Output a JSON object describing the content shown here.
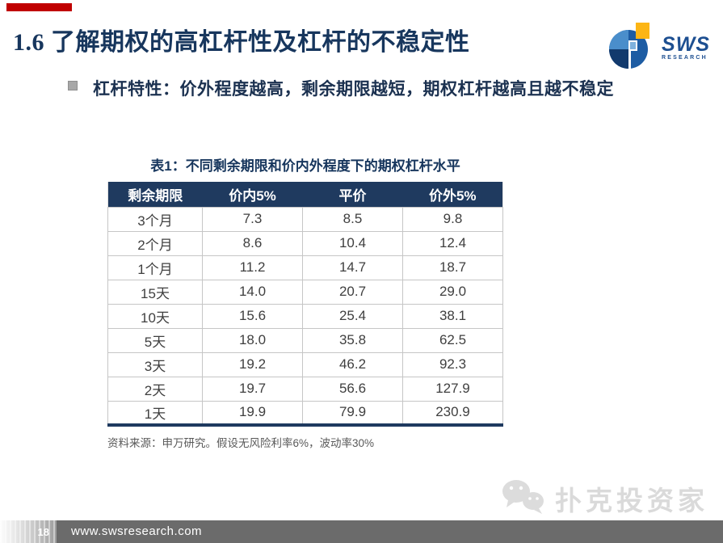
{
  "slide": {
    "title": "1.6 了解期权的高杠杆性及杠杆的不稳定性",
    "bullet": "杠杆特性：价外程度越高，剩余期限越短，期权杠杆越高且越不稳定"
  },
  "logo": {
    "brand": "SWS",
    "sub": "RESEARCH"
  },
  "table": {
    "caption": "表1：不同剩余期限和价内外程度下的期权杠杆水平",
    "headers": [
      "剩余期限",
      "价内5%",
      "平价",
      "价外5%"
    ],
    "rows": [
      [
        "3个月",
        "7.3",
        "8.5",
        "9.8"
      ],
      [
        "2个月",
        "8.6",
        "10.4",
        "12.4"
      ],
      [
        "1个月",
        "11.2",
        "14.7",
        "18.7"
      ],
      [
        "15天",
        "14.0",
        "20.7",
        "29.0"
      ],
      [
        "10天",
        "15.6",
        "25.4",
        "38.1"
      ],
      [
        "5天",
        "18.0",
        "35.8",
        "62.5"
      ],
      [
        "3天",
        "19.2",
        "46.2",
        "92.3"
      ],
      [
        "2天",
        "19.7",
        "56.6",
        "127.9"
      ],
      [
        "1天",
        "19.9",
        "79.9",
        "230.9"
      ]
    ],
    "source_note": "资料来源：申万研究。假设无风险利率6%，波动率30%"
  },
  "watermark": {
    "text": "扑克投资家"
  },
  "footer": {
    "page_number": "18",
    "url": "www.swsresearch.com"
  },
  "colors": {
    "navy": "#17365d",
    "header_bg": "#1f3a5f",
    "accent_red": "#c00000",
    "footer_gray": "#6b6b6b",
    "logo_blue": "#1d4f91",
    "logo_yellow": "#fcb514",
    "watermark_gray": "#d6d6d6"
  }
}
